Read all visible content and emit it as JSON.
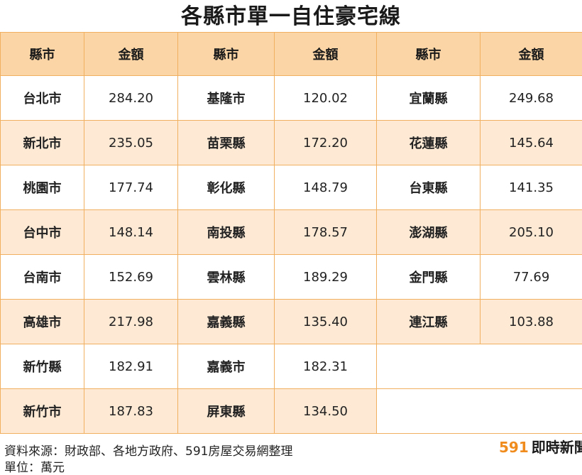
{
  "title": "各縣市單一自住豪宅線",
  "headers": [
    "縣市",
    "金額",
    "縣市",
    "金額",
    "縣市",
    "金額"
  ],
  "accent_red": "#c8102e",
  "header_color": "#fbd5a5",
  "alt_row_color": "#fde9d4",
  "rows": [
    [
      {
        "name": "台北市",
        "value": "284.20",
        "red": true
      },
      {
        "name": "基隆市",
        "value": "120.02",
        "red": false
      },
      {
        "name": "宜蘭縣",
        "value": "249.68",
        "red": true
      }
    ],
    [
      {
        "name": "新北市",
        "value": "235.05",
        "red": true
      },
      {
        "name": "苗栗縣",
        "value": "172.20",
        "red": false
      },
      {
        "name": "花蓮縣",
        "value": "145.64",
        "red": false
      }
    ],
    [
      {
        "name": "桃園市",
        "value": "177.74",
        "red": false
      },
      {
        "name": "彰化縣",
        "value": "148.79",
        "red": false
      },
      {
        "name": "台東縣",
        "value": "141.35",
        "red": false
      }
    ],
    [
      {
        "name": "台中市",
        "value": "148.14",
        "red": false
      },
      {
        "name": "南投縣",
        "value": "178.57",
        "red": false
      },
      {
        "name": "澎湖縣",
        "value": "205.10",
        "red": true
      }
    ],
    [
      {
        "name": "台南市",
        "value": "152.69",
        "red": false
      },
      {
        "name": "雲林縣",
        "value": "189.29",
        "red": false
      },
      {
        "name": "金門縣",
        "value": "77.69",
        "red": false
      }
    ],
    [
      {
        "name": "高雄市",
        "value": "217.98",
        "red": true
      },
      {
        "name": "嘉義縣",
        "value": "135.40",
        "red": false
      },
      {
        "name": "連江縣",
        "value": "103.88",
        "red": false
      }
    ],
    [
      {
        "name": "新竹縣",
        "value": "182.91",
        "red": false
      },
      {
        "name": "嘉義市",
        "value": "182.31",
        "red": false
      },
      null
    ],
    [
      {
        "name": "新竹市",
        "value": "187.83",
        "red": false
      },
      {
        "name": "屏東縣",
        "value": "134.50",
        "red": false
      },
      null
    ]
  ],
  "footer": {
    "source": "資料來源：財政部、各地方政府、591房屋交易網整理",
    "unit": "單位：萬元"
  },
  "brand": {
    "number": "591",
    "text": "即時新聞"
  }
}
